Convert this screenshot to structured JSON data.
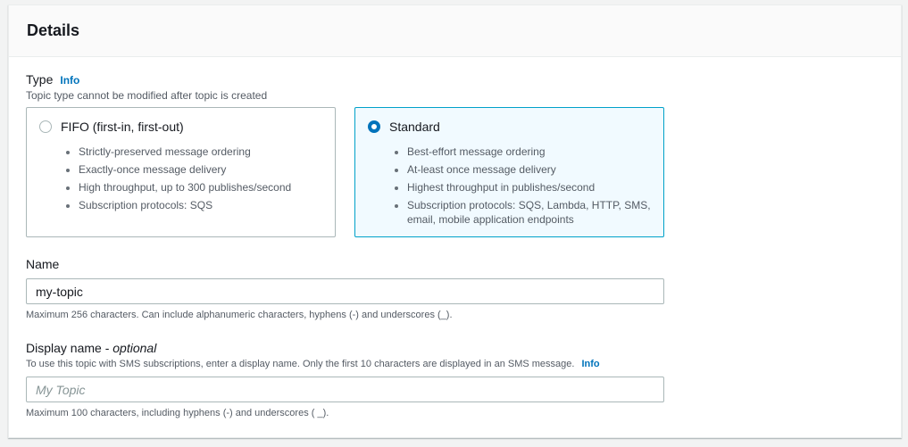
{
  "section": {
    "title": "Details"
  },
  "type": {
    "label": "Type",
    "info": "Info",
    "description": "Topic type cannot be modified after topic is created",
    "options": [
      {
        "title": "FIFO (first-in, first-out)",
        "selected": false,
        "bullets": [
          "Strictly-preserved message ordering",
          "Exactly-once message delivery",
          "High throughput, up to 300 publishes/second",
          "Subscription protocols: SQS"
        ]
      },
      {
        "title": "Standard",
        "selected": true,
        "bullets": [
          "Best-effort message ordering",
          "At-least once message delivery",
          "Highest throughput in publishes/second",
          "Subscription protocols: SQS, Lambda, HTTP, SMS, email, mobile application endpoints"
        ]
      }
    ]
  },
  "name": {
    "label": "Name",
    "value": "my-topic",
    "hint": "Maximum 256 characters. Can include alphanumeric characters, hyphens (-) and underscores (_)."
  },
  "display_name": {
    "label": "Display name - ",
    "optional": "optional",
    "description": "To use this topic with SMS subscriptions, enter a display name. Only the first 10 characters are displayed in an SMS message.",
    "info": "Info",
    "placeholder": "My Topic",
    "value": "",
    "hint": "Maximum 100 characters, including hyphens (-) and underscores ( _)."
  },
  "colors": {
    "accent": "#0073bb",
    "selected_bg": "#f1faff"
  }
}
